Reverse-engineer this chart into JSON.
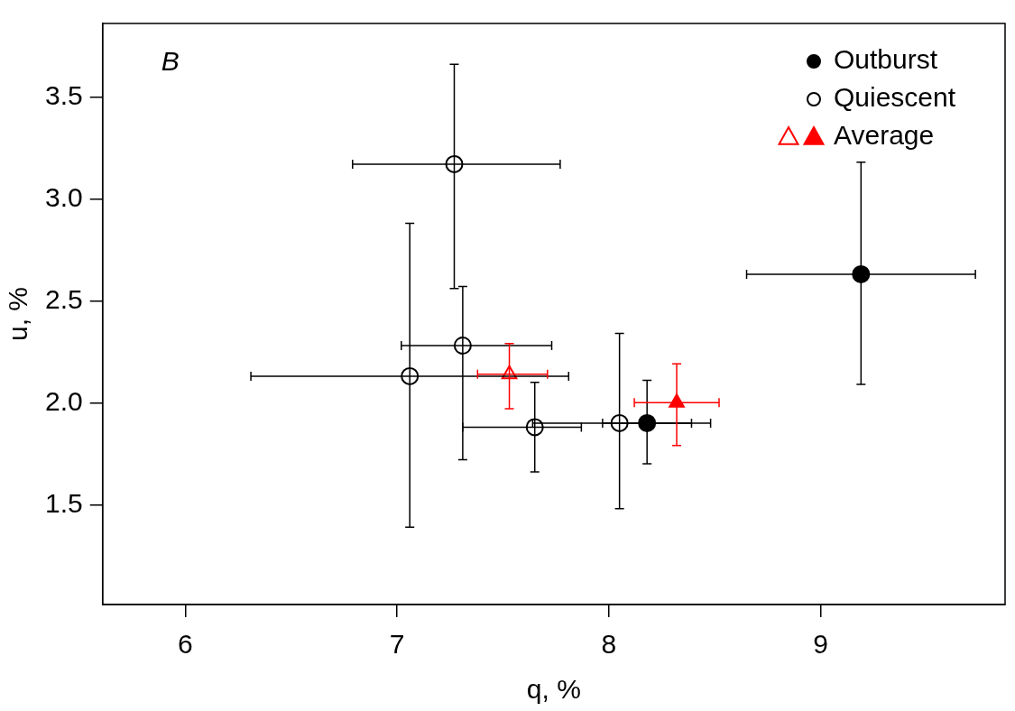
{
  "chart_data": {
    "type": "scatter",
    "xlabel": "q, %",
    "ylabel": "u, %",
    "annotations": [
      "B"
    ],
    "xlim": [
      5.61,
      9.87
    ],
    "ylim": [
      1.01,
      3.86
    ],
    "xticks": [
      6,
      7,
      8,
      9
    ],
    "yticks": [
      1.5,
      {
        "value": 2,
        "label": "2.0"
      },
      2.5,
      {
        "value": 3,
        "label": "3.0"
      },
      3.5
    ],
    "grid": false,
    "legend": "top right",
    "series": [
      {
        "name": "Outburst",
        "color": "#000000",
        "marker": "circle",
        "x": [
          9.19,
          8.18
        ],
        "values": [
          2.63,
          1.9
        ],
        "xerrors": [
          [
            8.65,
            9.73
          ],
          [
            7.97,
            8.48
          ]
        ],
        "errors": [
          [
            2.09,
            3.18
          ],
          [
            1.7,
            2.11
          ]
        ]
      },
      {
        "name": "Quiescent",
        "color": "#000000",
        "marker": "circle",
        "colors": [
          "#ffffff",
          "#ffffff",
          "#ffffff",
          "#ffffff",
          "#ffffff"
        ],
        "x": [
          7.27,
          7.31,
          7.06,
          7.65,
          8.05
        ],
        "values": [
          3.17,
          2.28,
          2.13,
          1.88,
          1.9
        ],
        "xerrors": [
          [
            6.79,
            7.77
          ],
          [
            7.02,
            7.73
          ],
          [
            6.31,
            7.81
          ],
          [
            7.31,
            7.87
          ],
          [
            7.64,
            8.39
          ]
        ],
        "errors": [
          [
            2.56,
            3.66
          ],
          [
            1.72,
            2.57
          ],
          [
            1.39,
            2.88
          ],
          [
            1.66,
            2.1
          ],
          [
            1.48,
            2.34
          ]
        ]
      },
      {
        "name": "Average",
        "color": "#ff0000",
        "marker": "triangle",
        "colors": [
          "#ffffff",
          "#ff0000"
        ],
        "x": [
          7.53,
          8.32
        ],
        "values": [
          2.14,
          2.0
        ],
        "xerrors": [
          [
            7.38,
            7.71
          ],
          [
            8.12,
            8.52
          ]
        ],
        "errors": [
          [
            1.97,
            2.29
          ],
          [
            1.79,
            2.19
          ]
        ]
      }
    ]
  }
}
